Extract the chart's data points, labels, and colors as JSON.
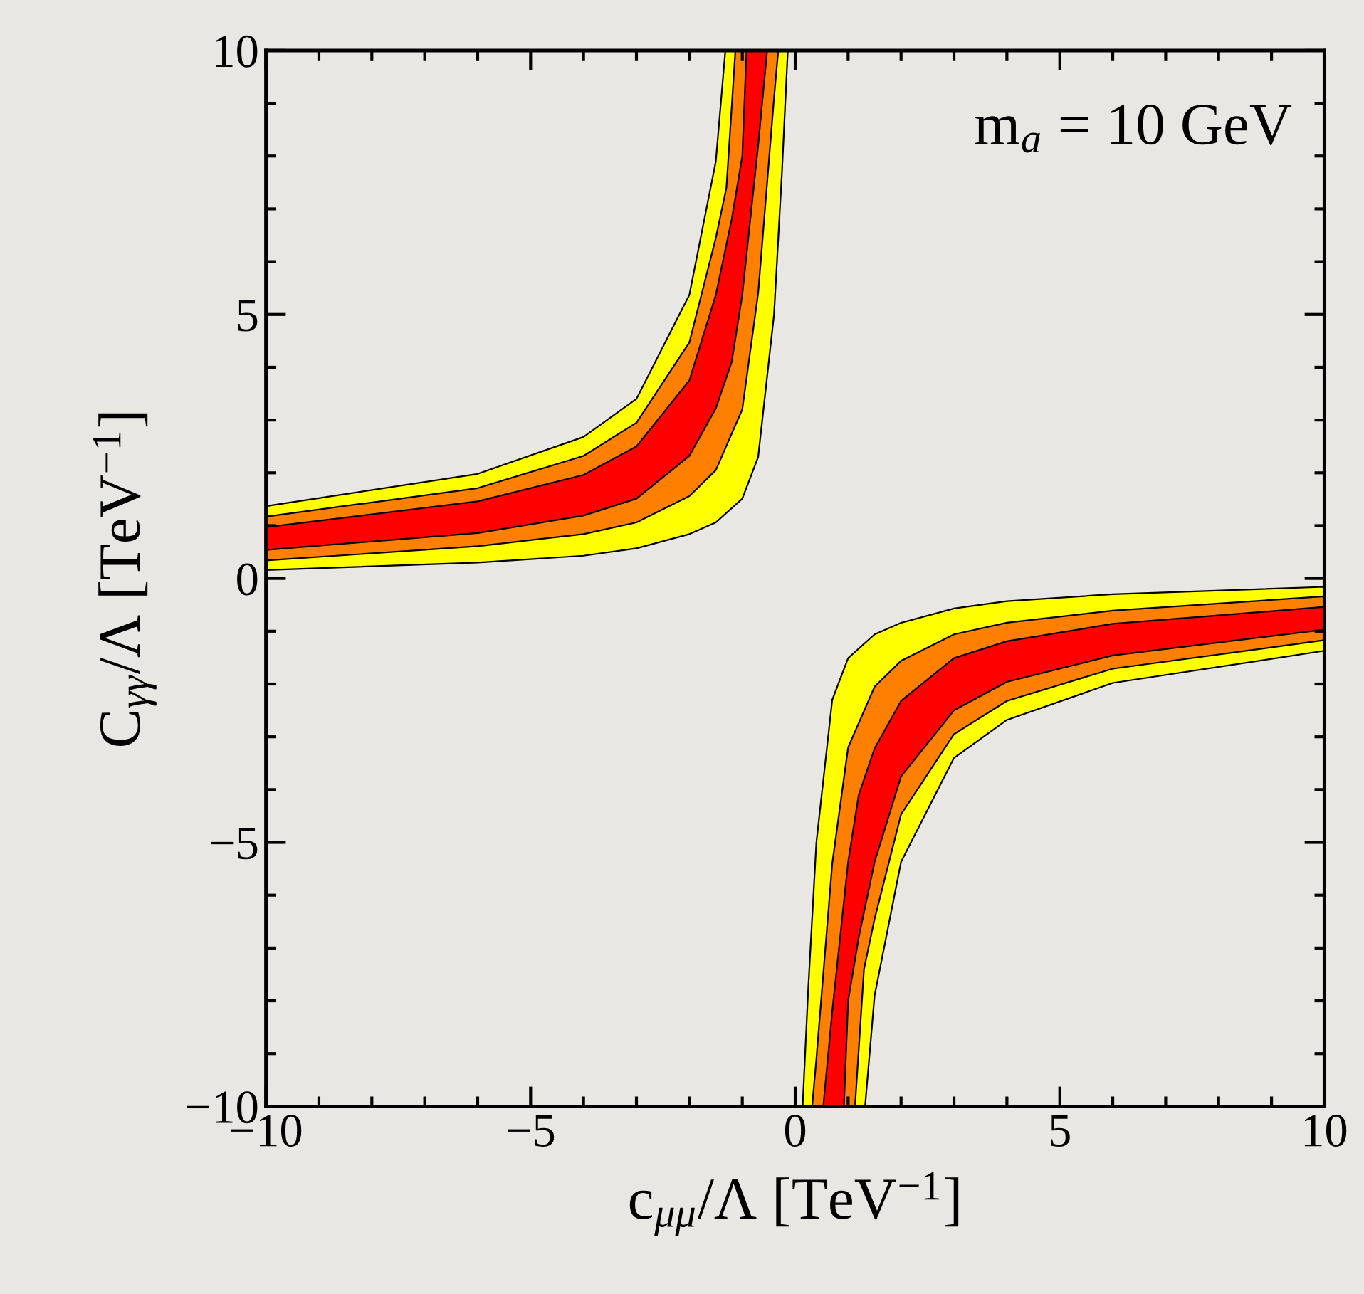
{
  "chart_data": {
    "type": "area",
    "xlabel": "c$_{μμ}$/Λ [TeV$^{−1}$]",
    "ylabel": "C$_{γγ}$/Λ [TeV$^{−1}$]",
    "annotations": [
      "m$_{a}$ = 10 GeV"
    ],
    "xlim": [
      -10,
      10
    ],
    "ylim": [
      -10,
      10
    ],
    "xticks": [
      {
        "value": -10,
        "label": "−10"
      },
      {
        "value": -5,
        "label": "−5"
      },
      0,
      5,
      10
    ],
    "yticks": [
      {
        "value": -10,
        "label": "−10"
      },
      {
        "value": -5,
        "label": "−5"
      },
      0,
      5,
      10
    ],
    "grid": false,
    "legend": false,
    "series": [
      {
        "color": "#ffff00",
        "x": [
          -10,
          -6,
          -4,
          -3,
          -2,
          -1.5,
          -1.32,
          -0.14,
          -0.25,
          -0.4,
          -0.7,
          -1,
          -1.5,
          -2,
          -3,
          -4,
          -6,
          -10
        ],
        "values": [
          1.37,
          1.98,
          2.68,
          3.4,
          5.37,
          7.9,
          10,
          10,
          7.7,
          5.0,
          2.3,
          1.51,
          1.06,
          0.84,
          0.57,
          0.43,
          0.3,
          0.16
        ]
      },
      {
        "color": "#ff8000",
        "x": [
          -10,
          -6,
          -4,
          -3,
          -2,
          -1.5,
          -1.3,
          -1.13,
          -0.32,
          -0.4,
          -0.7,
          -1,
          -1.5,
          -2,
          -3,
          -4,
          -6,
          -10
        ],
        "values": [
          1.17,
          1.71,
          2.32,
          2.95,
          4.47,
          6.45,
          7.4,
          10,
          10,
          9.1,
          5.4,
          3.2,
          2.05,
          1.56,
          1.06,
          0.84,
          0.61,
          0.34
        ]
      },
      {
        "color": "#ff0000",
        "x": [
          -10,
          -6,
          -4,
          -3,
          -2,
          -1.5,
          -1.2,
          -1,
          -0.92,
          -0.53,
          -0.7,
          -1,
          -1.2,
          -1.5,
          -2,
          -3,
          -4,
          -6,
          -10
        ],
        "values": [
          0.97,
          1.46,
          1.96,
          2.5,
          3.75,
          5.37,
          6.8,
          8.0,
          10,
          10,
          8.2,
          5.37,
          4.1,
          3.22,
          2.32,
          1.51,
          1.19,
          0.86,
          0.54
        ]
      },
      {
        "color": "#ffff00",
        "x": [
          10,
          6,
          4,
          3,
          2,
          1.5,
          1.32,
          0.14,
          0.25,
          0.4,
          0.7,
          1,
          1.5,
          2,
          3,
          4,
          6,
          10
        ],
        "values": [
          -1.37,
          -1.98,
          -2.68,
          -3.4,
          -5.37,
          -7.9,
          -10,
          -10,
          -7.7,
          -5.0,
          -2.3,
          -1.51,
          -1.06,
          -0.84,
          -0.57,
          -0.43,
          -0.3,
          -0.16
        ]
      },
      {
        "color": "#ff8000",
        "x": [
          10,
          6,
          4,
          3,
          2,
          1.5,
          1.3,
          1.13,
          0.32,
          0.4,
          0.7,
          1,
          1.5,
          2,
          3,
          4,
          6,
          10
        ],
        "values": [
          -1.17,
          -1.71,
          -2.32,
          -2.95,
          -4.47,
          -6.45,
          -7.4,
          -10,
          -10,
          -9.1,
          -5.4,
          -3.2,
          -2.05,
          -1.56,
          -1.06,
          -0.84,
          -0.61,
          -0.34
        ]
      },
      {
        "color": "#ff0000",
        "x": [
          10,
          6,
          4,
          3,
          2,
          1.5,
          1.2,
          1,
          0.92,
          0.53,
          0.7,
          1,
          1.2,
          1.5,
          2,
          3,
          4,
          6,
          10
        ],
        "values": [
          -0.97,
          -1.46,
          -1.96,
          -2.5,
          -3.75,
          -5.37,
          -6.8,
          -8.0,
          -10,
          -10,
          -8.2,
          -5.37,
          -4.1,
          -3.22,
          -2.32,
          -1.51,
          -1.19,
          -0.86,
          -0.54
        ]
      }
    ]
  }
}
